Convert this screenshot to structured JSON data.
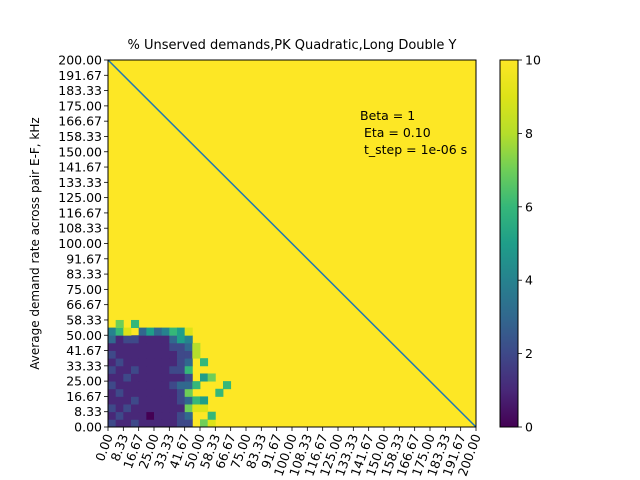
{
  "chart_data": {
    "type": "heatmap",
    "title": "% Unserved demands,PK Quadratic,Long Double Y",
    "xlabel": "",
    "ylabel": "Average demand rate across pair E-F, kHz",
    "xlim": [
      0,
      200
    ],
    "ylim": [
      0,
      200
    ],
    "x_tick_labels": [
      "0.00",
      "8.33",
      "16.67",
      "25.00",
      "33.33",
      "41.67",
      "50.00",
      "58.33",
      "66.67",
      "75.00",
      "83.33",
      "91.67",
      "100.00",
      "108.33",
      "116.67",
      "125.00",
      "133.33",
      "141.67",
      "150.00",
      "158.33",
      "166.67",
      "175.00",
      "183.33",
      "191.67",
      "200.00"
    ],
    "y_tick_labels": [
      "0.00",
      "8.33",
      "16.67",
      "25.00",
      "33.33",
      "41.67",
      "50.00",
      "58.33",
      "66.67",
      "75.00",
      "83.33",
      "91.67",
      "100.00",
      "108.33",
      "116.67",
      "125.00",
      "133.33",
      "141.67",
      "150.00",
      "158.33",
      "166.67",
      "175.00",
      "183.33",
      "191.67",
      "200.00"
    ],
    "grid": false,
    "grid_size": 48,
    "fill_value": 10,
    "low_region": {
      "description_rows_bottom_to_top": "cell values (0-10) for x-columns 0..13, y-rows 0..11; anything else is 10",
      "rows": [
        [
          2,
          1,
          1,
          2,
          1,
          1,
          1,
          1,
          1,
          2,
          2,
          10,
          10,
          10
        ],
        [
          1,
          2,
          1,
          1,
          1,
          0,
          1,
          1,
          1,
          2,
          3,
          10,
          10,
          10
        ],
        [
          2,
          1,
          2,
          1,
          1,
          1,
          1,
          1,
          1,
          1,
          7,
          10,
          9,
          10
        ],
        [
          1,
          1,
          1,
          2,
          1,
          1,
          1,
          1,
          1,
          2,
          3,
          10,
          10,
          10
        ],
        [
          1,
          2,
          1,
          1,
          1,
          1,
          1,
          1,
          1,
          2,
          2,
          10,
          10,
          10
        ],
        [
          2,
          1,
          1,
          1,
          1,
          1,
          1,
          1,
          2,
          3,
          3,
          10,
          10,
          10
        ],
        [
          1,
          1,
          2,
          1,
          1,
          1,
          1,
          1,
          1,
          1,
          2,
          10,
          10,
          10
        ],
        [
          2,
          1,
          1,
          2,
          1,
          1,
          1,
          1,
          2,
          2,
          6,
          10,
          10,
          10
        ],
        [
          1,
          2,
          1,
          1,
          1,
          1,
          1,
          1,
          1,
          2,
          3,
          10,
          10,
          10
        ],
        [
          2,
          1,
          1,
          1,
          1,
          1,
          1,
          1,
          1,
          2,
          2,
          10,
          10,
          10
        ],
        [
          1,
          1,
          1,
          1,
          1,
          1,
          1,
          1,
          2,
          2,
          3,
          10,
          10,
          10
        ],
        [
          2,
          1,
          2,
          2,
          1,
          1,
          1,
          1,
          1,
          3,
          4,
          10,
          10,
          10
        ]
      ],
      "extra_cells": [
        {
          "col": 11,
          "row": 2,
          "value": 9
        },
        {
          "col": 12,
          "row": 0,
          "value": 7
        },
        {
          "col": 13,
          "row": 1,
          "value": 6
        },
        {
          "col": 12,
          "row": 3,
          "value": 5
        },
        {
          "col": 11,
          "row": 3,
          "value": 6
        },
        {
          "col": 10,
          "row": 4,
          "value": 7
        },
        {
          "col": 11,
          "row": 5,
          "value": 6
        },
        {
          "col": 12,
          "row": 6,
          "value": 5
        },
        {
          "col": 12,
          "row": 8,
          "value": 6
        },
        {
          "col": 11,
          "row": 9,
          "value": 8
        },
        {
          "col": 11,
          "row": 10,
          "value": 8
        },
        {
          "col": 10,
          "row": 12,
          "value": 9
        },
        {
          "col": 9,
          "row": 12,
          "value": 5
        },
        {
          "col": 8,
          "row": 12,
          "value": 6
        },
        {
          "col": 7,
          "row": 12,
          "value": 4
        },
        {
          "col": 6,
          "row": 12,
          "value": 3
        },
        {
          "col": 5,
          "row": 12,
          "value": 5
        },
        {
          "col": 4,
          "row": 12,
          "value": 3
        },
        {
          "col": 2,
          "row": 12,
          "value": 9
        },
        {
          "col": 1,
          "row": 12,
          "value": 6
        },
        {
          "col": 0,
          "row": 12,
          "value": 4
        },
        {
          "col": 3,
          "row": 13,
          "value": 6
        },
        {
          "col": 1,
          "row": 13,
          "value": 7
        },
        {
          "col": 0,
          "row": 11,
          "value": 3
        },
        {
          "col": 9,
          "row": 11,
          "value": 5
        },
        {
          "col": 8,
          "row": 11,
          "value": 3
        },
        {
          "col": 14,
          "row": 4,
          "value": 6
        },
        {
          "col": 13,
          "row": 6,
          "value": 7
        },
        {
          "col": 15,
          "row": 5,
          "value": 6
        },
        {
          "col": 13,
          "row": 0,
          "value": 9
        }
      ]
    },
    "diagonal_line": {
      "from": [
        0,
        200
      ],
      "to": [
        200,
        0
      ],
      "color": "#1f77b4"
    },
    "colorbar": {
      "min": 0,
      "max": 10,
      "tick_labels": [
        "0",
        "2",
        "4",
        "6",
        "8",
        "10"
      ]
    },
    "annotation": [
      "Beta = 1",
      " Eta = 0.10",
      " t_step = 1e-06 s"
    ]
  }
}
